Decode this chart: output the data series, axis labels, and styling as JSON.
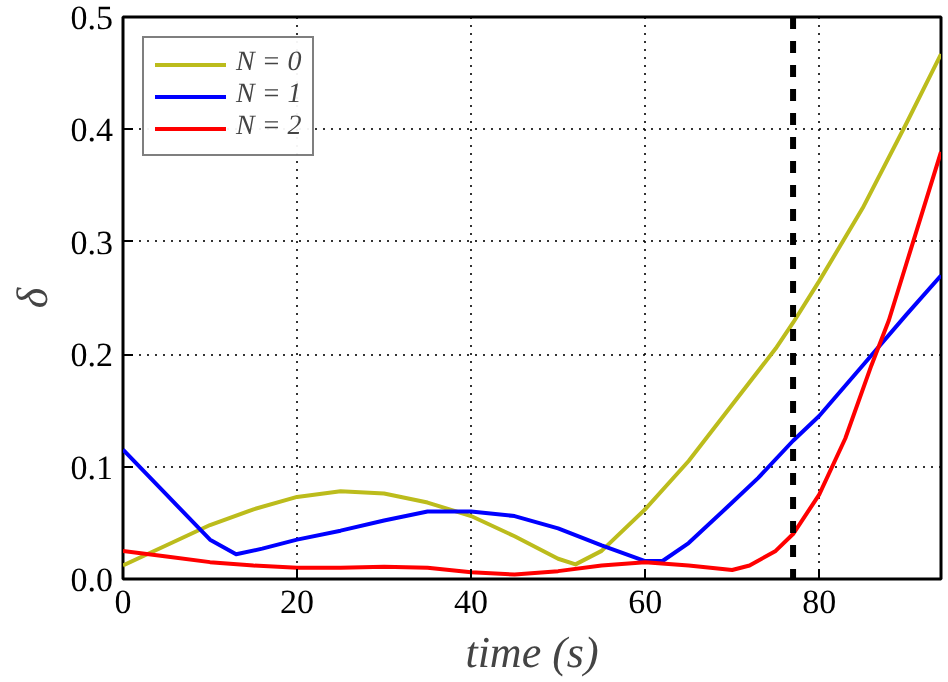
{
  "chart_data": {
    "type": "line",
    "xlabel": "time (s)",
    "ylabel": "δ",
    "xlim": [
      0,
      94
    ],
    "ylim": [
      0,
      0.5
    ],
    "xticks": [
      0,
      20,
      40,
      60,
      80
    ],
    "yticks": [
      {
        "value": 0,
        "label": "0.0"
      },
      {
        "value": 0.1,
        "label": "0.1"
      },
      {
        "value": 0.2,
        "label": "0.2"
      },
      {
        "value": 0.3,
        "label": "0.3"
      },
      {
        "value": 0.4,
        "label": "0.4"
      },
      {
        "value": 0.5,
        "label": "0.5"
      }
    ],
    "grid": true,
    "legend": "top left",
    "line_style": "solid",
    "marker": "none",
    "ref_lines": [
      {
        "axis": "x",
        "value": 77,
        "color": "#000000",
        "line_style": "dashed"
      }
    ],
    "series": [
      {
        "name": "N = 0",
        "color": "#bcbc1c",
        "x": [
          0,
          5,
          10,
          15,
          20,
          25,
          30,
          35,
          40,
          45,
          50,
          52,
          55,
          60,
          65,
          70,
          75,
          77,
          80,
          85,
          90,
          94
        ],
        "values": [
          0.012,
          0.03,
          0.048,
          0.062,
          0.073,
          0.078,
          0.076,
          0.068,
          0.056,
          0.038,
          0.018,
          0.013,
          0.025,
          0.062,
          0.105,
          0.155,
          0.205,
          0.228,
          0.265,
          0.33,
          0.405,
          0.467
        ]
      },
      {
        "name": "N = 1",
        "color": "#0000ff",
        "x": [
          0,
          5,
          10,
          13,
          16,
          20,
          25,
          30,
          35,
          40,
          45,
          50,
          55,
          60,
          62,
          65,
          70,
          73,
          77,
          80,
          85,
          90,
          94
        ],
        "values": [
          0.115,
          0.075,
          0.035,
          0.022,
          0.027,
          0.035,
          0.043,
          0.052,
          0.06,
          0.06,
          0.056,
          0.045,
          0.03,
          0.016,
          0.016,
          0.032,
          0.068,
          0.09,
          0.123,
          0.145,
          0.19,
          0.235,
          0.27
        ]
      },
      {
        "name": "N = 2",
        "color": "#ff0000",
        "x": [
          0,
          5,
          10,
          15,
          20,
          25,
          30,
          35,
          40,
          45,
          50,
          55,
          60,
          65,
          70,
          72,
          75,
          77,
          80,
          83,
          86,
          88,
          90,
          92,
          94
        ],
        "values": [
          0.025,
          0.02,
          0.015,
          0.012,
          0.01,
          0.01,
          0.011,
          0.01,
          0.006,
          0.004,
          0.007,
          0.012,
          0.015,
          0.012,
          0.008,
          0.012,
          0.025,
          0.04,
          0.075,
          0.125,
          0.19,
          0.23,
          0.28,
          0.33,
          0.38
        ]
      }
    ]
  }
}
